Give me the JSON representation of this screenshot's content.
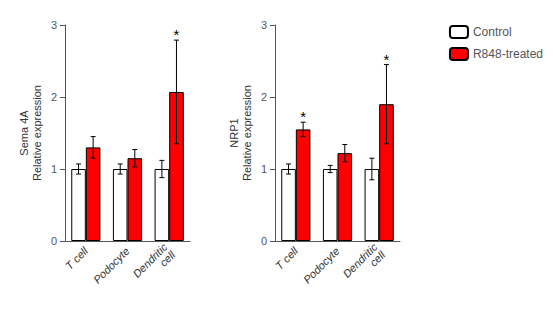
{
  "chart_data": [
    {
      "type": "bar",
      "title": "Sema 4A",
      "y_label": "Relative expression",
      "categories": [
        "T cell",
        "Podocyte",
        "Dendritic\ncell"
      ],
      "series": [
        {
          "name": "Control",
          "color": "white",
          "values": [
            1.0,
            1.0,
            1.0
          ],
          "errors": [
            0.07,
            0.07,
            0.12
          ]
        },
        {
          "name": "R848-treated",
          "color": "red",
          "values": [
            1.3,
            1.15,
            2.07
          ],
          "errors": [
            0.15,
            0.12,
            0.72
          ]
        }
      ],
      "annotations": [
        {
          "category": "Dendritic\ncell",
          "series": "R848-treated",
          "text": "*"
        }
      ],
      "ylim": [
        0,
        3
      ],
      "yticks": [
        0,
        1,
        2,
        3
      ],
      "grid": false
    },
    {
      "type": "bar",
      "title": "NRP1",
      "y_label": "Relative expression",
      "categories": [
        "T cell",
        "Podocyte",
        "Dendritic\ncell"
      ],
      "series": [
        {
          "name": "Control",
          "color": "white",
          "values": [
            1.0,
            1.0,
            1.0
          ],
          "errors": [
            0.07,
            0.05,
            0.15
          ]
        },
        {
          "name": "R848-treated",
          "color": "red",
          "values": [
            1.55,
            1.22,
            1.9
          ],
          "errors": [
            0.1,
            0.12,
            0.55
          ]
        }
      ],
      "annotations": [
        {
          "category": "T cell",
          "series": "R848-treated",
          "text": "*"
        },
        {
          "category": "Dendritic\ncell",
          "series": "R848-treated",
          "text": "*"
        }
      ],
      "ylim": [
        0,
        3
      ],
      "yticks": [
        0,
        1,
        2,
        3
      ],
      "grid": false,
      "legend": "upper right"
    }
  ]
}
